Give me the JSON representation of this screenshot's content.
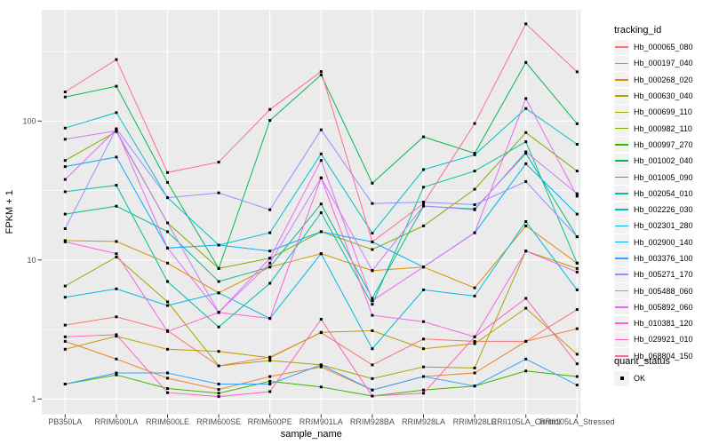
{
  "figure": {
    "x_axis_title": "sample_name",
    "y_axis_title": "FPKM + 1"
  },
  "legend_tracking": {
    "title": "tracking_id"
  },
  "legend_quant": {
    "title": "quant_status",
    "items": [
      {
        "label": "OK",
        "shape": "black-square"
      }
    ]
  },
  "theme": {
    "panel_bg": "#EBEBEB",
    "grid_color": "#FFFFFF",
    "tick_label_color": "#4D4D4D",
    "tick_mark_color": "#333333",
    "marker_color": "#000000",
    "legend_key_bg": "#F2F2F2"
  },
  "chart_data": {
    "type": "line",
    "title": "",
    "xlabel": "sample_name",
    "ylabel": "FPKM + 1",
    "y_scale": "log10",
    "ylim": [
      0.8,
      650
    ],
    "y_ticks": [
      1,
      10,
      100
    ],
    "y_tick_labels": [
      "1",
      "10",
      "100"
    ],
    "y_minor_ticks": [
      3.162,
      31.62,
      316.2
    ],
    "grid": true,
    "legend_position": "right",
    "marker": "black-square (quant_status OK at every point)",
    "categories": [
      "PB350LA",
      "RRIM600LA",
      "RRIM600LE",
      "RRIM600SE",
      "RRIM600PE",
      "RRIM901LA",
      "RRIM928BA",
      "RRIM928LA",
      "RRIM928LE",
      "RRII105LA_Control",
      "RRII105LA_Stressed"
    ],
    "series": [
      {
        "name": "Hb_000065_080",
        "color": "#F8766D",
        "values": [
          3.4,
          3.9,
          3.1,
          1.73,
          2.0,
          3.0,
          1.76,
          2.7,
          2.6,
          2.6,
          4.4
        ]
      },
      {
        "name": "Hb_000197_040",
        "color": "#EA8331",
        "values": [
          2.6,
          1.94,
          1.41,
          1.17,
          1.45,
          1.7,
          1.16,
          1.45,
          1.54,
          2.6,
          3.2
        ]
      },
      {
        "name": "Hb_000268_020",
        "color": "#D89000",
        "values": [
          13.8,
          13.6,
          9.5,
          5.8,
          8.9,
          11.1,
          8.4,
          8.9,
          6.3,
          17.6,
          9.5
        ]
      },
      {
        "name": "Hb_000630_040",
        "color": "#C09B00",
        "values": [
          2.28,
          2.83,
          2.28,
          2.2,
          1.98,
          3.02,
          3.1,
          2.3,
          2.5,
          4.5,
          2.1
        ]
      },
      {
        "name": "Hb_000699_110",
        "color": "#A3A500",
        "values": [
          6.5,
          10.5,
          5.0,
          1.73,
          1.89,
          1.76,
          1.4,
          1.7,
          1.67,
          11.6,
          8.7
        ]
      },
      {
        "name": "Hb_000982_110",
        "color": "#7CAE00",
        "values": [
          52,
          84,
          18.5,
          8.7,
          10.3,
          16.0,
          11.9,
          17.6,
          32.3,
          82.6,
          43.7
        ]
      },
      {
        "name": "Hb_000997_270",
        "color": "#39B600",
        "values": [
          1.28,
          1.49,
          1.19,
          1.1,
          1.34,
          1.22,
          1.05,
          1.16,
          1.24,
          1.59,
          1.45
        ]
      },
      {
        "name": "Hb_001002_040",
        "color": "#00BB4E",
        "values": [
          149,
          178,
          36.2,
          8.7,
          101,
          215,
          35.7,
          77,
          58.6,
          264,
          95.7
        ]
      },
      {
        "name": "Hb_001005_090",
        "color": "#00BF7D",
        "values": [
          21.4,
          24.4,
          16.0,
          7.0,
          8.9,
          25.3,
          5.3,
          24.4,
          23.3,
          58.6,
          14.7
        ]
      },
      {
        "name": "Hb_002054_010",
        "color": "#00C1A3",
        "values": [
          31,
          34.5,
          7.0,
          3.3,
          6.8,
          21.9,
          4.8,
          33.4,
          43.7,
          71,
          9.5
        ]
      },
      {
        "name": "Hb_002226_030",
        "color": "#00BFC4",
        "values": [
          89,
          115,
          28.1,
          12.8,
          15.7,
          58,
          15.6,
          44.7,
          57.2,
          123,
          68
        ]
      },
      {
        "name": "Hb_002301_280",
        "color": "#00BAE0",
        "values": [
          5.4,
          6.2,
          4.7,
          5.8,
          3.8,
          11.1,
          2.3,
          6.1,
          5.5,
          18.9,
          6.1
        ]
      },
      {
        "name": "Hb_002900_140",
        "color": "#00B0F6",
        "values": [
          47,
          55,
          12.2,
          12.8,
          11.6,
          16.0,
          13.5,
          8.9,
          15.7,
          49.3,
          21.4
        ]
      },
      {
        "name": "Hb_003376_100",
        "color": "#35A2FF",
        "values": [
          1.28,
          1.54,
          1.54,
          1.28,
          1.28,
          1.76,
          1.16,
          1.45,
          1.24,
          1.94,
          1.26
        ]
      },
      {
        "name": "Hb_005271_170",
        "color": "#9590FF",
        "values": [
          16.8,
          88,
          28.1,
          30.4,
          23,
          86.5,
          25.5,
          26.1,
          25,
          36.7,
          14.7
        ]
      },
      {
        "name": "Hb_005488_060",
        "color": "#C77CFF",
        "values": [
          74,
          85,
          18.5,
          4.2,
          9.5,
          39,
          8.4,
          24.5,
          23,
          60,
          30
        ]
      },
      {
        "name": "Hb_005892_060",
        "color": "#E76BF3",
        "values": [
          38,
          87,
          12.2,
          4.2,
          10.3,
          52,
          5.1,
          8.9,
          15.7,
          145,
          28.8
        ]
      },
      {
        "name": "Hb_010381_120",
        "color": "#FA62DB",
        "values": [
          13.5,
          11.1,
          3.06,
          4.2,
          3.8,
          39,
          4.0,
          3.6,
          2.8,
          11.6,
          8.2
        ]
      },
      {
        "name": "Hb_029921_010",
        "color": "#FF62BC",
        "values": [
          2.8,
          2.9,
          1.11,
          1.04,
          1.13,
          3.75,
          1.05,
          1.1,
          2.8,
          5.3,
          1.79
        ]
      },
      {
        "name": "Hb_068804_150",
        "color": "#FF6A98",
        "values": [
          162,
          277,
          42.6,
          50.6,
          121,
          227,
          13.5,
          25.5,
          96,
          500,
          226
        ]
      }
    ]
  }
}
